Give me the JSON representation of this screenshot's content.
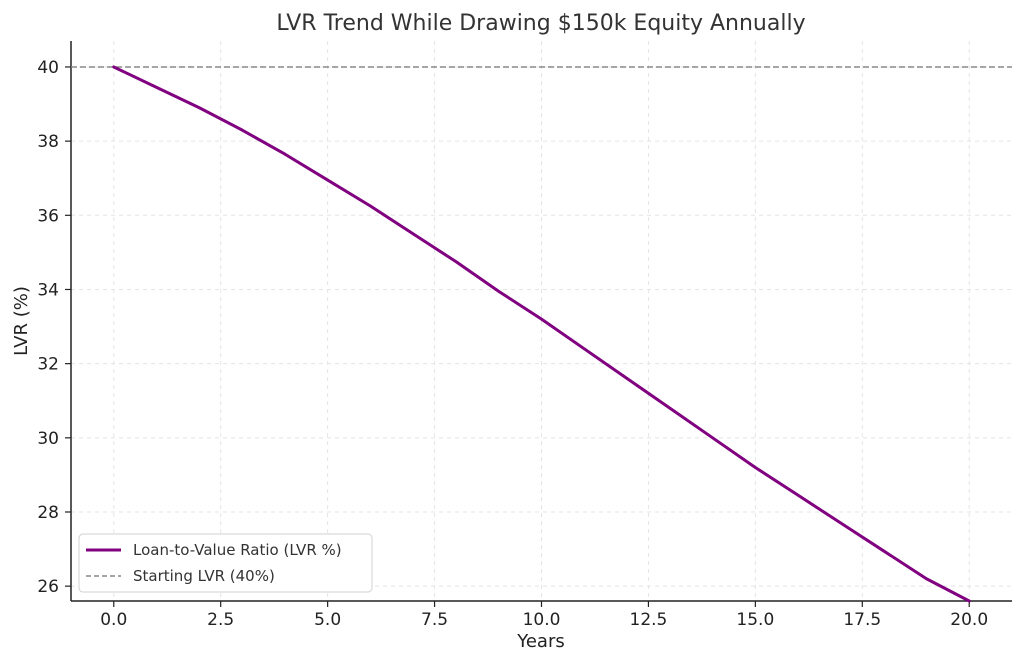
{
  "chart_data": {
    "type": "line",
    "title": "LVR Trend While Drawing $150k Equity Annually",
    "xlabel": "Years",
    "ylabel": "LVR (%)",
    "xlim": [
      -1,
      21
    ],
    "ylim": [
      25.6,
      40.7
    ],
    "x_ticks": [
      0,
      2.5,
      5,
      7.5,
      10,
      12.5,
      15,
      17.5,
      20
    ],
    "x_tick_labels": [
      "0.0",
      "2.5",
      "5.0",
      "7.5",
      "10.0",
      "12.5",
      "15.0",
      "17.5",
      "20.0"
    ],
    "y_ticks": [
      26,
      28,
      30,
      32,
      34,
      36,
      38,
      40
    ],
    "y_tick_labels": [
      "26",
      "28",
      "30",
      "32",
      "34",
      "36",
      "38",
      "40"
    ],
    "grid": true,
    "legend_position": "lower-left",
    "series": [
      {
        "name": "Loan-to-Value Ratio (LVR %)",
        "color": "#800080",
        "style": "solid",
        "x": [
          0,
          1,
          2,
          3,
          4,
          5,
          6,
          7,
          8,
          9,
          10,
          11,
          12,
          13,
          14,
          15,
          16,
          17,
          18,
          19,
          20
        ],
        "y": [
          40.0,
          39.45,
          38.9,
          38.3,
          37.65,
          36.95,
          36.25,
          35.5,
          34.75,
          33.95,
          33.2,
          32.4,
          31.6,
          30.8,
          30.0,
          29.2,
          28.45,
          27.7,
          26.95,
          26.2,
          25.6
        ]
      },
      {
        "name": "Starting LVR (40%)",
        "color": "#888888",
        "style": "dashed",
        "y_constant": 40
      }
    ]
  }
}
